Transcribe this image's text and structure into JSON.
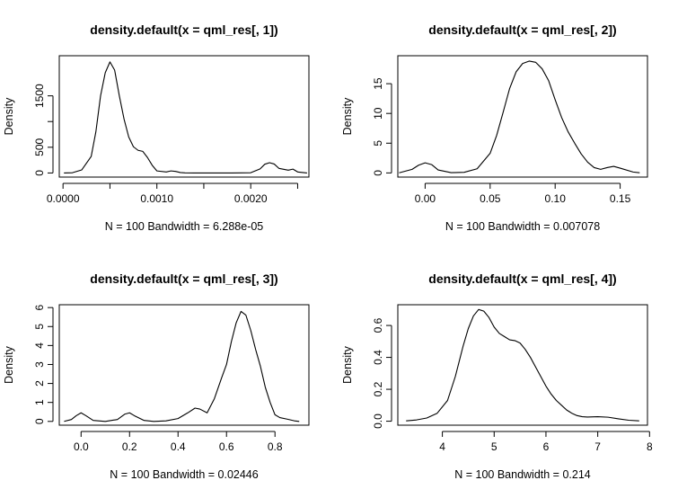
{
  "chart_data": [
    {
      "type": "line",
      "title": "density.default(x = qml_res[, 1])",
      "xlabel": "N = 100   Bandwidth = 6.288e-05",
      "ylabel": "Density",
      "xlim": [
        -4e-05,
        0.00262
      ],
      "ylim": [
        -80,
        2280
      ],
      "x_ticks": [
        0.0,
        0.001,
        0.002
      ],
      "x_tick_labels": [
        "0.0000",
        "0.0010",
        "0.0020"
      ],
      "y_ticks": [
        0,
        500,
        1500
      ],
      "y_tick_labels": [
        "0",
        "500",
        "1500"
      ],
      "x_minor_ticks": [
        0.0005,
        0.0015,
        0.0025
      ],
      "y_minor_ticks": [
        1000
      ],
      "grid": false,
      "series": [
        {
          "x": [
            1e-05,
            0.0001,
            0.0002,
            0.0003,
            0.00035,
            0.0004,
            0.00045,
            0.0005,
            0.00055,
            0.0006,
            0.00065,
            0.0007,
            0.00075,
            0.0008,
            0.00085,
            0.0009,
            0.00095,
            0.001,
            0.0011,
            0.00115,
            0.0012,
            0.00125,
            0.0013,
            0.0014,
            0.0016,
            0.0018,
            0.002,
            0.0021,
            0.00215,
            0.0022,
            0.00225,
            0.0023,
            0.0024,
            0.00245,
            0.0025,
            0.0026
          ],
          "y": [
            0,
            5,
            60,
            320,
            800,
            1500,
            1950,
            2160,
            2000,
            1500,
            1050,
            700,
            510,
            440,
            420,
            300,
            150,
            40,
            20,
            40,
            30,
            8,
            2,
            0,
            0,
            0,
            5,
            80,
            170,
            200,
            175,
            90,
            55,
            75,
            20,
            0
          ]
        }
      ]
    },
    {
      "type": "line",
      "title": "density.default(x = qml_res[, 2])",
      "xlabel": "N = 100   Bandwidth = 0.007078",
      "ylabel": "Density",
      "xlim": [
        -0.021,
        0.171
      ],
      "ylim": [
        -0.7,
        19.7
      ],
      "x_ticks": [
        0.0,
        0.05,
        0.1,
        0.15
      ],
      "x_tick_labels": [
        "0.00",
        "0.05",
        "0.10",
        "0.15"
      ],
      "y_ticks": [
        0,
        5,
        10,
        15
      ],
      "y_tick_labels": [
        "0",
        "5",
        "10",
        "15"
      ],
      "grid": false,
      "series": [
        {
          "x": [
            -0.02,
            -0.01,
            -0.005,
            0.0,
            0.005,
            0.01,
            0.02,
            0.03,
            0.04,
            0.05,
            0.055,
            0.06,
            0.065,
            0.07,
            0.075,
            0.08,
            0.085,
            0.09,
            0.095,
            0.1,
            0.105,
            0.11,
            0.115,
            0.12,
            0.125,
            0.13,
            0.135,
            0.14,
            0.145,
            0.15,
            0.16,
            0.165
          ],
          "y": [
            0.02,
            0.6,
            1.3,
            1.7,
            1.4,
            0.5,
            0.05,
            0.1,
            0.7,
            3.3,
            6.3,
            10.2,
            14.2,
            17.0,
            18.4,
            18.8,
            18.6,
            17.5,
            15.5,
            12.3,
            9.3,
            6.9,
            5.0,
            3.2,
            1.8,
            0.9,
            0.6,
            0.9,
            1.1,
            0.8,
            0.15,
            0.03
          ]
        }
      ]
    },
    {
      "type": "line",
      "title": "density.default(x = qml_res[, 3])",
      "xlabel": "N = 100   Bandwidth = 0.02446",
      "ylabel": "Density",
      "xlim": [
        -0.09,
        0.94
      ],
      "ylim": [
        -0.2,
        6.15
      ],
      "x_ticks": [
        0.0,
        0.2,
        0.4,
        0.6,
        0.8
      ],
      "x_tick_labels": [
        "0.0",
        "0.2",
        "0.4",
        "0.6",
        "0.8"
      ],
      "y_ticks": [
        0,
        1,
        2,
        3,
        4,
        5,
        6
      ],
      "y_tick_labels": [
        "0",
        "1",
        "2",
        "3",
        "4",
        "5",
        "6"
      ],
      "grid": false,
      "series": [
        {
          "x": [
            -0.07,
            -0.04,
            -0.02,
            0.0,
            0.02,
            0.05,
            0.1,
            0.15,
            0.18,
            0.2,
            0.22,
            0.26,
            0.3,
            0.35,
            0.4,
            0.44,
            0.47,
            0.49,
            0.52,
            0.55,
            0.58,
            0.6,
            0.62,
            0.64,
            0.66,
            0.68,
            0.7,
            0.72,
            0.74,
            0.76,
            0.78,
            0.8,
            0.82,
            0.85,
            0.88,
            0.9
          ],
          "y": [
            0.0,
            0.1,
            0.3,
            0.45,
            0.3,
            0.05,
            0.0,
            0.1,
            0.38,
            0.45,
            0.3,
            0.05,
            0.0,
            0.03,
            0.15,
            0.45,
            0.7,
            0.65,
            0.45,
            1.2,
            2.3,
            3.0,
            4.2,
            5.2,
            5.8,
            5.6,
            4.8,
            3.8,
            2.9,
            1.8,
            1.0,
            0.35,
            0.2,
            0.12,
            0.03,
            0.0
          ]
        }
      ]
    },
    {
      "type": "line",
      "title": "density.default(x = qml_res[, 4])",
      "xlabel": "N = 100   Bandwidth = 0.214",
      "ylabel": "Density",
      "xlim": [
        3.14,
        7.96
      ],
      "ylim": [
        -0.025,
        0.73
      ],
      "x_ticks": [
        4,
        5,
        6,
        7,
        8
      ],
      "x_tick_labels": [
        "4",
        "5",
        "6",
        "7",
        "8"
      ],
      "y_ticks": [
        0.0,
        0.2,
        0.4,
        0.6
      ],
      "y_tick_labels": [
        "0.0",
        "0.2",
        "0.4",
        "0.6"
      ],
      "grid": false,
      "series": [
        {
          "x": [
            3.3,
            3.5,
            3.7,
            3.9,
            4.1,
            4.25,
            4.4,
            4.5,
            4.6,
            4.7,
            4.8,
            4.9,
            5.0,
            5.1,
            5.2,
            5.3,
            5.4,
            5.5,
            5.6,
            5.7,
            5.8,
            5.9,
            6.0,
            6.1,
            6.2,
            6.3,
            6.4,
            6.5,
            6.6,
            6.7,
            6.8,
            7.0,
            7.2,
            7.4,
            7.6,
            7.8
          ],
          "y": [
            0.002,
            0.008,
            0.02,
            0.05,
            0.13,
            0.28,
            0.47,
            0.58,
            0.66,
            0.7,
            0.69,
            0.65,
            0.59,
            0.55,
            0.53,
            0.51,
            0.505,
            0.49,
            0.45,
            0.4,
            0.34,
            0.28,
            0.22,
            0.17,
            0.13,
            0.1,
            0.07,
            0.05,
            0.035,
            0.028,
            0.026,
            0.028,
            0.025,
            0.015,
            0.006,
            0.002
          ]
        }
      ]
    }
  ]
}
